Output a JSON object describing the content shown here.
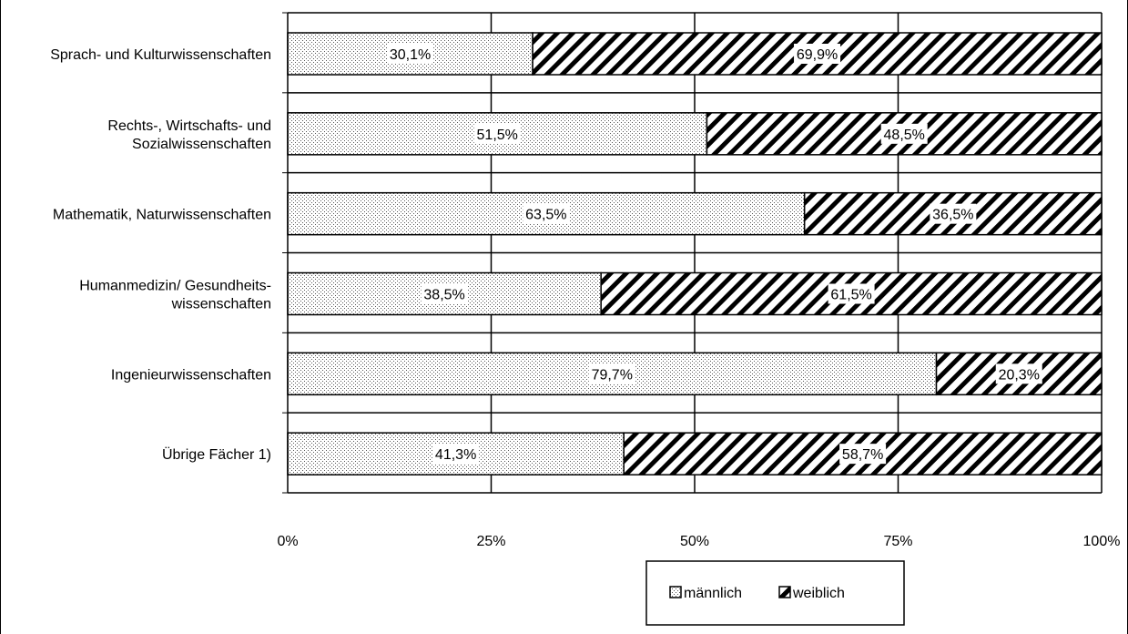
{
  "chart_data": {
    "type": "bar",
    "orientation": "horizontal",
    "stacked": true,
    "percent": true,
    "categories": [
      [
        "Sprach- und Kulturwissenschaften"
      ],
      [
        "Rechts-, Wirtschafts- und",
        "Sozialwissenschaften"
      ],
      [
        "Mathematik, Naturwissenschaften"
      ],
      [
        "Humanmedizin/ Gesundheits-",
        "wissenschaften"
      ],
      [
        "Ingenieurwissenschaften"
      ],
      [
        "Übrige Fächer 1)"
      ]
    ],
    "series": [
      {
        "name": "männlich",
        "pattern": "dots",
        "values": [
          30.1,
          51.5,
          63.5,
          38.5,
          79.7,
          41.3
        ],
        "labels": [
          "30,1%",
          "51,5%",
          "63,5%",
          "38,5%",
          "79,7%",
          "41,3%"
        ]
      },
      {
        "name": "weiblich",
        "pattern": "diagonal-stripes",
        "values": [
          69.9,
          48.5,
          36.5,
          61.5,
          20.3,
          58.7
        ],
        "labels": [
          "69,9%",
          "48,5%",
          "36,5%",
          "61,5%",
          "20,3%",
          "58,7%"
        ]
      }
    ],
    "x_ticks": [
      0,
      25,
      50,
      75,
      100
    ],
    "x_tick_labels": [
      "0%",
      "25%",
      "50%",
      "75%",
      "100%"
    ],
    "xlim": [
      0,
      100
    ],
    "grid": true,
    "legend_position": "bottom-center",
    "colors": {
      "stroke": "#000000",
      "background": "#ffffff"
    }
  }
}
